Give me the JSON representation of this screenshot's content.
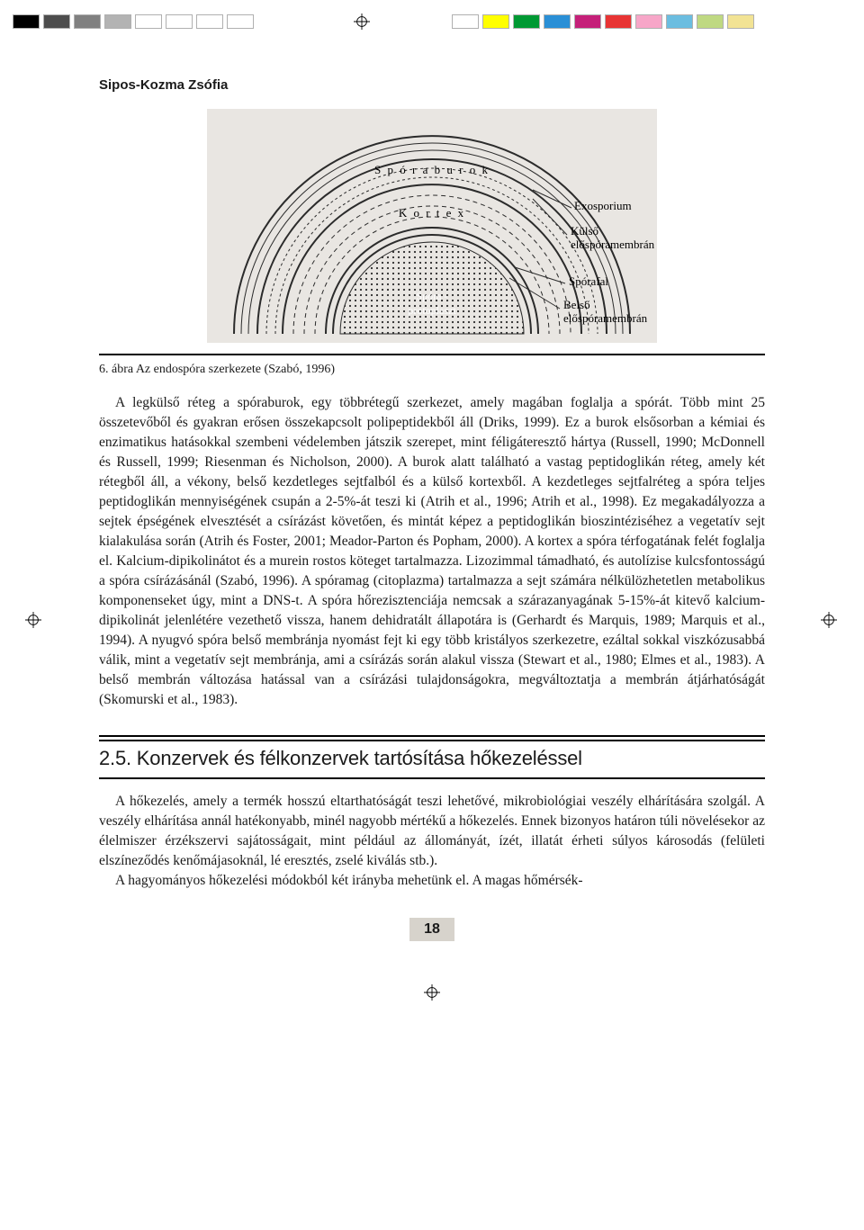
{
  "crop_bar": {
    "left_swatches": [
      "#000000",
      "#4d4d4d",
      "#808080",
      "#b3b3b3",
      "#ffffff",
      "#ffffff",
      "#ffffff",
      "#ffffff"
    ],
    "right_swatches": [
      "#ffffff",
      "#ffff00",
      "#009933",
      "#2a8fd6",
      "#c52079",
      "#e83434",
      "#f7a6c8",
      "#6bbde0",
      "#bfd982",
      "#f2e394"
    ],
    "swatch_w": 28,
    "border": "#b0b0b0"
  },
  "running_head": "Sipos-Kozma Zsófia",
  "figure": {
    "bg": "#e9e6e2",
    "stroke": "#2b2b2b",
    "label_font": 13,
    "labels": {
      "sporaburok": "S p ó r a b u r o k",
      "kortex": "K o r t e x",
      "spora_protoplaszt_1": "Spóra -",
      "spora_protoplaszt_2": "protoplaszt",
      "exosporium": "Exosporium",
      "kulso1": "Külső",
      "kulso2": "előspóramembrán",
      "sporafal": "Spórafal",
      "belso1": "Belső",
      "belso2": "előspóramembrán"
    }
  },
  "caption": "6. ábra Az endospóra szerkezete (Szabó, 1996)",
  "para1": "A legkülső réteg a spóraburok, egy többrétegű szerkezet, amely magában foglalja a spórát. Több mint 25 összetevőből és gyakran erősen összekapcsolt polipeptidekből áll (Driks, 1999). Ez a burok elsősorban a kémiai és enzimatikus hatásokkal szembeni védelemben játszik szerepet, mint féligáteresztő hártya (Russell, 1990; McDonnell és Russell, 1999; Riesenman és Nicholson, 2000). A burok alatt található a vastag peptidoglikán réteg, amely két rétegből áll, a vékony, belső kezdetleges sejtfalból és a külső kortexből. A kezdetleges sejtfalréteg a spóra teljes peptidoglikán mennyiségének csupán a 2-5%-át teszi ki (Atrih et al., 1996; Atrih et al., 1998). Ez megakadályozza a sejtek épségének elvesztését a csírázást követően, és mintát képez a peptidoglikán bioszintéziséhez a vegetatív sejt kialakulása során (Atrih és Foster, 2001; Meador-Parton és Popham, 2000). A kortex a spóra térfogatának felét foglalja el. Kalcium-dipikolinátot és a murein rostos köteget tartalmazza. Lizozimmal támadható, és autolízise kulcsfontosságú a spóra csírázásánál (Szabó, 1996). A spóramag (citoplazma) tartalmazza a sejt számára nélkülözhetetlen metabolikus komponenseket úgy, mint a DNS-t. A spóra hőrezisztenciája nemcsak a szárazanyagának 5-15%-át kitevő kalcium-dipikolinát jelenlétére vezethető vissza, hanem dehidratált állapotára is (Gerhardt és Marquis, 1989; Marquis et al., 1994). A nyugvó spóra belső membránja nyomást fejt ki egy több kristályos szerkezetre, ezáltal sokkal viszkózusabbá válik, mint a vegetatív sejt membránja, ami a csírázás során alakul vissza (Stewart et al., 1980; Elmes et al., 1983). A belső membrán változása hatással van a csírázási tulajdonságokra, megváltoztatja a membrán átjárhatóságát (Skomurski et al., 1983).",
  "section_head": "2.5. Konzervek és félkonzervek tartósítása hőkezeléssel",
  "para2": "A hőkezelés, amely a termék hosszú eltarthatóságát teszi lehetővé, mikrobiológiai veszély elhárítására szolgál. A veszély elhárítása annál hatékonyabb, minél nagyobb mértékű a hőkezelés. Ennek bizonyos határon túli növelésekor az élelmiszer érzékszervi sajátosságait, mint például az állományát, ízét, illatát érheti súlyos károsodás (felületi elszíneződés kenőmájasoknál, lé eresztés, zselé kiválás stb.).",
  "para3": "A hagyományos hőkezelési módokból két irányba mehetünk el. A magas hőmérsék-",
  "page_number": "18"
}
